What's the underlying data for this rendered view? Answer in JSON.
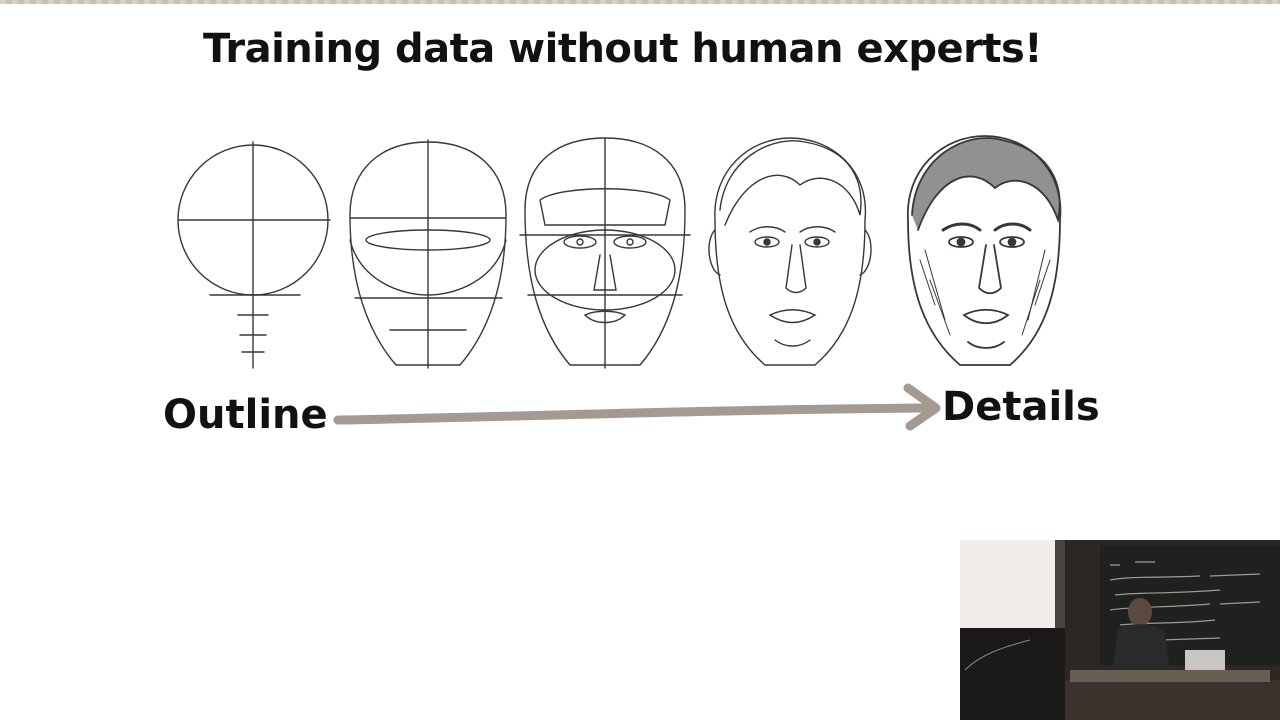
{
  "slide": {
    "title": "Training data without human experts!",
    "label_start": "Outline",
    "label_end": "Details"
  },
  "colors": {
    "arrow": "#a59a91",
    "sketch": "#3a3633",
    "title": "#111111"
  },
  "illustration": {
    "stages": 5,
    "icon": "face-drawing-progression-icon"
  },
  "video": {
    "icon": "lecturer-camera-feed-icon"
  }
}
